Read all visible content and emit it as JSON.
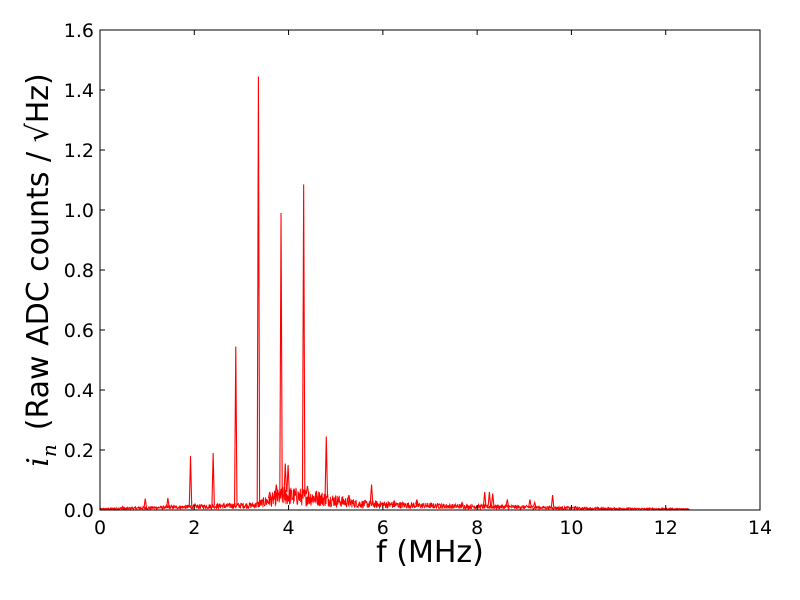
{
  "chart_data": {
    "type": "line",
    "title": "",
    "xlabel": "f (MHz)",
    "ylabel": "(Raw ADC counts / √Hz)",
    "ylabel_symbol": "i",
    "ylabel_subscript": "n",
    "xlim": [
      0,
      14
    ],
    "ylim": [
      0,
      1.6
    ],
    "xticks": [
      0,
      2,
      4,
      6,
      8,
      10,
      12,
      14
    ],
    "yticks": [
      0.0,
      0.2,
      0.4,
      0.6,
      0.8,
      1.0,
      1.2,
      1.4,
      1.6
    ],
    "xtick_labels": [
      "0",
      "2",
      "4",
      "6",
      "8",
      "10",
      "12",
      "14"
    ],
    "ytick_labels": [
      "0.0",
      "0.2",
      "0.4",
      "0.6",
      "0.8",
      "1.0",
      "1.2",
      "1.4",
      "1.6"
    ],
    "grid": false,
    "legend": "none",
    "series": [
      {
        "color": "#ff0000",
        "x_range": [
          0,
          12.5
        ],
        "peaks": [
          {
            "x": 0.48,
            "y": 0.012
          },
          {
            "x": 0.96,
            "y": 0.038
          },
          {
            "x": 1.44,
            "y": 0.04
          },
          {
            "x": 1.92,
            "y": 0.18
          },
          {
            "x": 2.4,
            "y": 0.19
          },
          {
            "x": 2.88,
            "y": 0.545
          },
          {
            "x": 3.36,
            "y": 1.445
          },
          {
            "x": 3.6,
            "y": 0.06
          },
          {
            "x": 3.74,
            "y": 0.085
          },
          {
            "x": 3.84,
            "y": 0.99
          },
          {
            "x": 3.93,
            "y": 0.155
          },
          {
            "x": 3.99,
            "y": 0.15
          },
          {
            "x": 4.32,
            "y": 1.085
          },
          {
            "x": 4.4,
            "y": 0.08
          },
          {
            "x": 4.8,
            "y": 0.245
          },
          {
            "x": 5.28,
            "y": 0.05
          },
          {
            "x": 5.76,
            "y": 0.085
          },
          {
            "x": 6.24,
            "y": 0.03
          },
          {
            "x": 6.72,
            "y": 0.035
          },
          {
            "x": 7.2,
            "y": 0.02
          },
          {
            "x": 7.68,
            "y": 0.025
          },
          {
            "x": 8.16,
            "y": 0.06
          },
          {
            "x": 8.26,
            "y": 0.06
          },
          {
            "x": 8.33,
            "y": 0.055
          },
          {
            "x": 8.64,
            "y": 0.035
          },
          {
            "x": 9.12,
            "y": 0.035
          },
          {
            "x": 9.22,
            "y": 0.025
          },
          {
            "x": 9.6,
            "y": 0.05
          },
          {
            "x": 10.08,
            "y": 0.012
          },
          {
            "x": 10.56,
            "y": 0.008
          },
          {
            "x": 11.04,
            "y": 0.006
          },
          {
            "x": 12.0,
            "y": 0.005
          }
        ],
        "noise_floor": [
          {
            "x": 0.0,
            "y": 0.004
          },
          {
            "x": 3.3,
            "y": 0.02
          },
          {
            "x": 3.9,
            "y": 0.06
          },
          {
            "x": 4.6,
            "y": 0.05
          },
          {
            "x": 5.5,
            "y": 0.025
          },
          {
            "x": 7.5,
            "y": 0.015
          },
          {
            "x": 9.0,
            "y": 0.012
          },
          {
            "x": 10.5,
            "y": 0.006
          },
          {
            "x": 12.5,
            "y": 0.004
          }
        ]
      }
    ]
  }
}
